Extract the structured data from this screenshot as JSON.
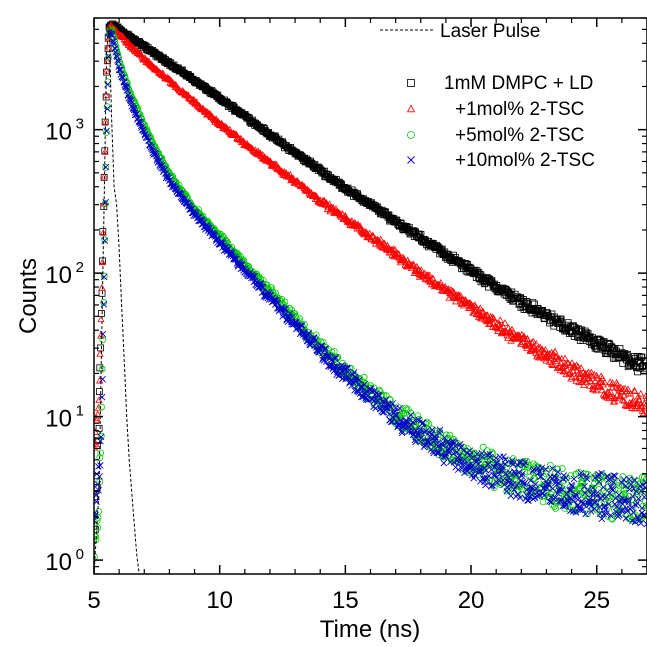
{
  "chart_data": {
    "type": "scatter",
    "title": "",
    "xlabel": "Time (ns)",
    "ylabel": "Counts",
    "xlim": [
      5,
      27
    ],
    "ylim": [
      0.8,
      6000
    ],
    "xscale": "linear",
    "yscale": "log",
    "x_ticks": [
      5,
      10,
      15,
      20,
      25
    ],
    "x_tick_labels": [
      "5",
      "10",
      "15",
      "20",
      "25"
    ],
    "y_ticks": [
      1,
      10,
      100,
      1000
    ],
    "y_tick_labels": [
      {
        "base": "10",
        "exp": "0"
      },
      {
        "base": "10",
        "exp": "1"
      },
      {
        "base": "10",
        "exp": "2"
      },
      {
        "base": "10",
        "exp": "3"
      }
    ],
    "grid": false,
    "legend_position": "top-right",
    "laser_pulse": {
      "name": "Laser Pulse",
      "style": "dashed",
      "color": "#000000",
      "x": [
        5.0,
        5.2,
        5.3,
        5.4,
        5.5,
        5.6,
        5.7,
        5.8,
        5.9,
        6.0,
        6.1,
        6.2,
        6.3,
        6.4,
        6.5,
        6.6,
        6.7,
        6.8
      ],
      "y": [
        0.8,
        3,
        30,
        300,
        3500,
        5200,
        1200,
        400,
        300,
        150,
        60,
        25,
        10,
        5,
        3,
        1.8,
        1.1,
        0.8
      ]
    },
    "series": [
      {
        "name": "1mM DMPC + LD",
        "marker": "square",
        "color": "#000000",
        "x": [
          5.0,
          5.1,
          5.2,
          5.3,
          5.4,
          5.5,
          5.6,
          5.7,
          5.8,
          6.0,
          7,
          8,
          9,
          10,
          11,
          12,
          13,
          14,
          15,
          16,
          17,
          18,
          19,
          20,
          21,
          22,
          23,
          24,
          25,
          26,
          27
        ],
        "y": [
          1.5,
          3,
          10,
          60,
          400,
          2500,
          5200,
          5300,
          5300,
          5000,
          3800,
          2900,
          2200,
          1650,
          1250,
          920,
          690,
          520,
          390,
          300,
          230,
          175,
          135,
          104,
          80,
          63,
          50,
          40,
          32,
          26,
          22
        ]
      },
      {
        "name": "+1mol% 2-TSC",
        "marker": "triangle",
        "color": "#ff0000",
        "x": [
          5.0,
          5.1,
          5.2,
          5.3,
          5.4,
          5.5,
          5.6,
          5.7,
          5.8,
          6.0,
          7,
          8,
          9,
          10,
          11,
          12,
          13,
          14,
          15,
          16,
          17,
          18,
          19,
          20,
          21,
          22,
          23,
          24,
          25,
          26,
          27
        ],
        "y": [
          5,
          8,
          15,
          60,
          400,
          2500,
          5200,
          5200,
          5100,
          4600,
          3100,
          2200,
          1550,
          1100,
          800,
          590,
          440,
          320,
          240,
          180,
          135,
          100,
          76,
          58,
          44,
          34,
          27,
          21,
          17,
          14,
          12
        ]
      },
      {
        "name": "+5mol% 2-TSC",
        "marker": "circle",
        "color": "#00cc00",
        "x": [
          5.0,
          5.1,
          5.2,
          5.3,
          5.4,
          5.5,
          5.6,
          5.7,
          5.8,
          6.0,
          6.5,
          7,
          7.5,
          8,
          9,
          10,
          11,
          12,
          13,
          14,
          15,
          16,
          17,
          18,
          19,
          20,
          21,
          22,
          23,
          24,
          25,
          26,
          27
        ],
        "y": [
          1.3,
          2,
          3,
          10,
          80,
          900,
          4700,
          5000,
          4300,
          3000,
          1700,
          1050,
          700,
          490,
          280,
          180,
          115,
          75,
          48,
          31,
          21,
          15,
          10.5,
          8,
          6.2,
          5,
          4.2,
          3.7,
          3.3,
          3.0,
          2.8,
          2.7,
          2.6
        ]
      },
      {
        "name": "+10mol% 2-TSC",
        "marker": "x",
        "color": "#0000cc",
        "x": [
          5.0,
          5.1,
          5.2,
          5.3,
          5.4,
          5.5,
          5.6,
          5.7,
          5.8,
          6.0,
          6.5,
          7,
          7.5,
          8,
          9,
          10,
          11,
          12,
          13,
          14,
          15,
          16,
          17,
          18,
          19,
          20,
          21,
          22,
          23,
          24,
          25,
          26,
          27
        ],
        "y": [
          2.5,
          3,
          4,
          10,
          80,
          900,
          4700,
          4600,
          3900,
          2700,
          1500,
          950,
          630,
          440,
          260,
          165,
          105,
          68,
          44,
          29,
          19.5,
          14,
          10,
          7.6,
          6,
          4.9,
          4.1,
          3.6,
          3.2,
          3.0,
          2.8,
          2.7,
          2.6
        ]
      }
    ]
  }
}
